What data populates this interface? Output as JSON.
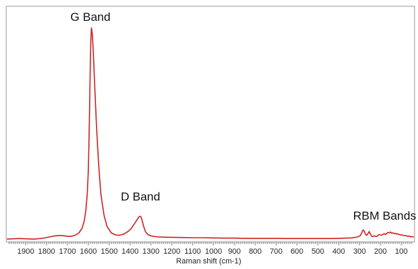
{
  "chart_data": {
    "type": "line",
    "title": "",
    "xlabel": "Raman shift (cm-1)",
    "ylabel": "",
    "x_reversed": true,
    "xlim": [
      1990,
      40
    ],
    "ylim": [
      0,
      1
    ],
    "grid": false,
    "legend": "none",
    "x_ticks": [
      1900,
      1800,
      1700,
      1600,
      1500,
      1400,
      1300,
      1200,
      1100,
      1000,
      900,
      800,
      700,
      600,
      500,
      400,
      300,
      200,
      100
    ],
    "x_tick_labels": [
      "1900",
      "1800",
      "1700",
      "1600",
      "1500",
      "1400",
      "1300",
      "1200",
      "1100",
      "1000",
      "900",
      "800",
      "700",
      "600",
      "500",
      "400",
      "300",
      "200",
      "100"
    ],
    "annotations": [
      {
        "text": "G Band",
        "x": 1590,
        "y": 1.0
      },
      {
        "text": "D Band",
        "x": 1350,
        "y": 0.155
      },
      {
        "text": "RBM Bands",
        "x": 180,
        "y": 0.065
      }
    ],
    "series": [
      {
        "color": "#cc2222",
        "x": [
          1990,
          1960,
          1930,
          1900,
          1860,
          1820,
          1790,
          1760,
          1730,
          1700,
          1680,
          1660,
          1645,
          1630,
          1620,
          1612,
          1605,
          1600,
          1597,
          1594,
          1591,
          1588,
          1585,
          1580,
          1575,
          1570,
          1560,
          1550,
          1540,
          1525,
          1510,
          1490,
          1470,
          1450,
          1430,
          1410,
          1395,
          1385,
          1375,
          1365,
          1358,
          1352,
          1347,
          1343,
          1338,
          1332,
          1325,
          1315,
          1300,
          1280,
          1250,
          1200,
          1150,
          1100,
          1050,
          1000,
          950,
          900,
          850,
          800,
          750,
          700,
          650,
          600,
          550,
          500,
          450,
          400,
          370,
          340,
          320,
          305,
          295,
          288,
          283,
          278,
          272,
          266,
          260,
          254,
          248,
          242,
          236,
          230,
          224,
          218,
          212,
          206,
          200,
          194,
          188,
          182,
          176,
          170,
          164,
          158,
          152,
          146,
          140,
          134,
          128,
          122,
          116,
          110,
          104,
          98,
          92,
          86,
          80,
          74,
          68,
          62,
          56,
          50,
          44,
          40
        ],
        "y": [
          0.007,
          0.008,
          0.009,
          0.008,
          0.007,
          0.01,
          0.016,
          0.022,
          0.024,
          0.02,
          0.02,
          0.026,
          0.036,
          0.058,
          0.09,
          0.14,
          0.22,
          0.33,
          0.46,
          0.62,
          0.8,
          0.94,
          1.0,
          0.96,
          0.86,
          0.74,
          0.52,
          0.35,
          0.22,
          0.12,
          0.065,
          0.036,
          0.026,
          0.025,
          0.03,
          0.042,
          0.056,
          0.07,
          0.085,
          0.1,
          0.11,
          0.114,
          0.11,
          0.097,
          0.078,
          0.058,
          0.04,
          0.028,
          0.022,
          0.018,
          0.016,
          0.015,
          0.014,
          0.013,
          0.013,
          0.012,
          0.011,
          0.011,
          0.01,
          0.01,
          0.01,
          0.01,
          0.009,
          0.009,
          0.009,
          0.009,
          0.009,
          0.01,
          0.011,
          0.012,
          0.015,
          0.018,
          0.025,
          0.04,
          0.05,
          0.044,
          0.03,
          0.024,
          0.032,
          0.042,
          0.03,
          0.02,
          0.018,
          0.022,
          0.02,
          0.019,
          0.024,
          0.028,
          0.026,
          0.025,
          0.029,
          0.032,
          0.028,
          0.033,
          0.038,
          0.036,
          0.04,
          0.034,
          0.036,
          0.032,
          0.034,
          0.03,
          0.031,
          0.028,
          0.026,
          0.027,
          0.024,
          0.023,
          0.024,
          0.021,
          0.02,
          0.021,
          0.018,
          0.017,
          0.018,
          0.017
        ]
      }
    ]
  }
}
